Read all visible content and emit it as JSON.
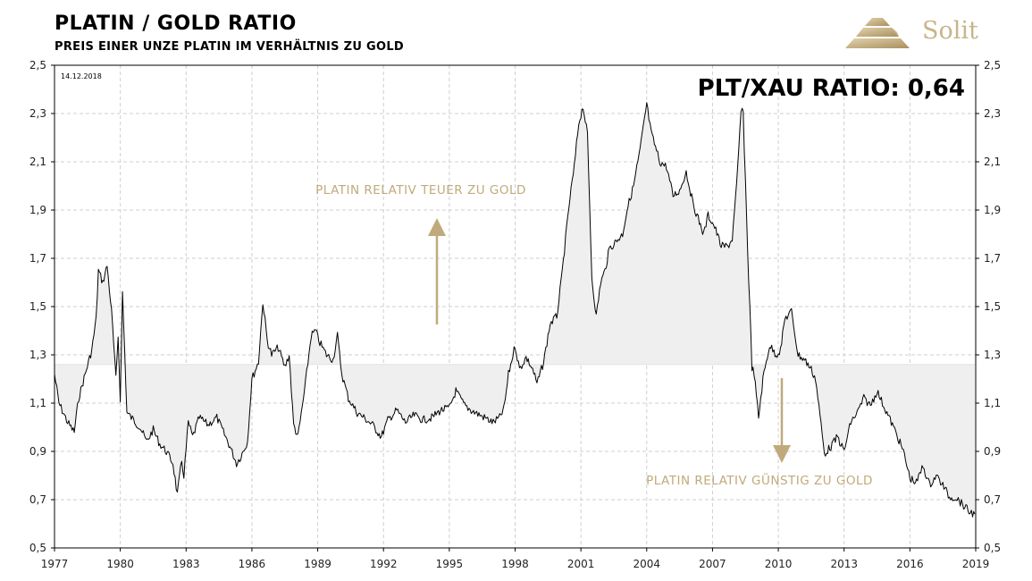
{
  "header": {
    "title": "PLATIN / GOLD RATIO",
    "subtitle": "PREIS EINER UNZE PLATIN IM VERHÄLTNIS ZU GOLD",
    "logo_text": "Solit",
    "logo_color": "#c8b48a"
  },
  "chart_data": {
    "type": "line",
    "date_label": "14.12.2018",
    "ratio_label": "PLT/XAU RATIO: 0,64",
    "xlim": [
      1977,
      2019
    ],
    "ylim": [
      0.5,
      2.5
    ],
    "x_ticks": [
      "1977",
      "1980",
      "1983",
      "1986",
      "1989",
      "1992",
      "1995",
      "1998",
      "2001",
      "2004",
      "2007",
      "2010",
      "2013",
      "2016",
      "2019"
    ],
    "y_ticks": [
      "0,5",
      "0,7",
      "0,9",
      "1,1",
      "1,3",
      "1,5",
      "1,7",
      "1,9",
      "2,1",
      "2,3",
      "2,5"
    ],
    "grid": true,
    "reference_value": 1.26,
    "line_color": "#000000",
    "fill_color": "#efefef",
    "annotation_color": "#c0aa7c",
    "annotations": [
      {
        "text": "PLATIN RELATIV TEUER ZU GOLD",
        "direction": "up"
      },
      {
        "text": "PLATIN RELATIV GÜNSTIG ZU GOLD",
        "direction": "down"
      }
    ],
    "series": [
      {
        "x": [
          1977.0,
          1977.2,
          1977.4,
          1977.6,
          1977.9,
          1978.1,
          1978.4,
          1978.7,
          1978.9,
          1979.0,
          1979.2,
          1979.4,
          1979.6,
          1979.8,
          1979.9,
          1980.0,
          1980.1,
          1980.3,
          1980.6,
          1980.9,
          1981.2,
          1981.5,
          1981.8,
          1982.1,
          1982.4,
          1982.6,
          1982.8,
          1982.9,
          1983.1,
          1983.3,
          1983.6,
          1984.0,
          1984.4,
          1984.8,
          1985.0,
          1985.3,
          1985.5,
          1985.8,
          1986.0,
          1986.3,
          1986.5,
          1986.7,
          1986.9,
          1987.2,
          1987.5,
          1987.7,
          1987.9,
          1988.1,
          1988.4,
          1988.7,
          1988.9,
          1989.1,
          1989.4,
          1989.7,
          1989.9,
          1990.1,
          1990.4,
          1990.8,
          1991.1,
          1991.5,
          1991.9,
          1992.2,
          1992.6,
          1993.0,
          1993.4,
          1993.8,
          1994.2,
          1994.6,
          1995.0,
          1995.3,
          1995.7,
          1996.0,
          1996.4,
          1996.8,
          1997.0,
          1997.3,
          1997.5,
          1997.7,
          1998.0,
          1998.2,
          1998.5,
          1998.8,
          1999.0,
          1999.3,
          1999.6,
          1999.9,
          2000.1,
          2000.3,
          2000.5,
          2000.7,
          2000.9,
          2001.1,
          2001.3,
          2001.5,
          2001.7,
          2001.9,
          2002.1,
          2002.3,
          2002.6,
          2002.9,
          2003.1,
          2003.4,
          2003.7,
          2004.0,
          2004.2,
          2004.4,
          2004.6,
          2004.9,
          2005.2,
          2005.5,
          2005.8,
          2006.1,
          2006.4,
          2006.6,
          2006.8,
          2007.1,
          2007.4,
          2007.7,
          2007.9,
          2008.1,
          2008.3,
          2008.4,
          2008.6,
          2008.8,
          2008.9,
          2009.1,
          2009.3,
          2009.6,
          2009.9,
          2010.1,
          2010.3,
          2010.6,
          2010.9,
          2011.2,
          2011.5,
          2011.7,
          2011.9,
          2012.1,
          2012.4,
          2012.7,
          2013.0,
          2013.3,
          2013.6,
          2013.9,
          2014.2,
          2014.5,
          2014.8,
          2015.1,
          2015.4,
          2015.7,
          2016.0,
          2016.3,
          2016.6,
          2016.9,
          2017.2,
          2017.5,
          2017.8,
          2018.1,
          2018.4,
          2018.7,
          2018.96
        ],
        "y": [
          1.22,
          1.1,
          1.06,
          1.02,
          0.98,
          1.12,
          1.22,
          1.32,
          1.45,
          1.65,
          1.6,
          1.67,
          1.48,
          1.2,
          1.38,
          1.12,
          1.56,
          1.06,
          1.03,
          1.0,
          0.94,
          0.99,
          0.93,
          0.9,
          0.85,
          0.72,
          0.86,
          0.8,
          1.02,
          0.96,
          1.04,
          1.01,
          1.04,
          0.96,
          0.92,
          0.85,
          0.88,
          0.94,
          1.2,
          1.27,
          1.52,
          1.36,
          1.3,
          1.33,
          1.25,
          1.3,
          1.01,
          0.96,
          1.15,
          1.38,
          1.4,
          1.35,
          1.3,
          1.28,
          1.38,
          1.22,
          1.12,
          1.06,
          1.04,
          1.01,
          0.96,
          1.03,
          1.07,
          1.02,
          1.05,
          1.03,
          1.04,
          1.07,
          1.08,
          1.15,
          1.09,
          1.07,
          1.05,
          1.03,
          1.02,
          1.04,
          1.08,
          1.22,
          1.34,
          1.24,
          1.29,
          1.24,
          1.18,
          1.27,
          1.43,
          1.46,
          1.6,
          1.78,
          1.95,
          2.08,
          2.26,
          2.33,
          2.21,
          1.62,
          1.46,
          1.6,
          1.65,
          1.74,
          1.77,
          1.8,
          1.9,
          2.0,
          2.15,
          2.34,
          2.22,
          2.16,
          2.1,
          2.08,
          1.96,
          1.98,
          2.06,
          1.93,
          1.85,
          1.8,
          1.88,
          1.83,
          1.75,
          1.75,
          1.78,
          2.0,
          2.31,
          2.3,
          1.74,
          1.25,
          1.22,
          1.04,
          1.2,
          1.34,
          1.3,
          1.32,
          1.45,
          1.48,
          1.3,
          1.28,
          1.24,
          1.2,
          1.05,
          0.89,
          0.92,
          0.96,
          0.9,
          1.02,
          1.06,
          1.12,
          1.09,
          1.15,
          1.09,
          1.03,
          0.97,
          0.9,
          0.79,
          0.77,
          0.84,
          0.76,
          0.8,
          0.76,
          0.71,
          0.71,
          0.68,
          0.65,
          0.64
        ]
      }
    ]
  }
}
